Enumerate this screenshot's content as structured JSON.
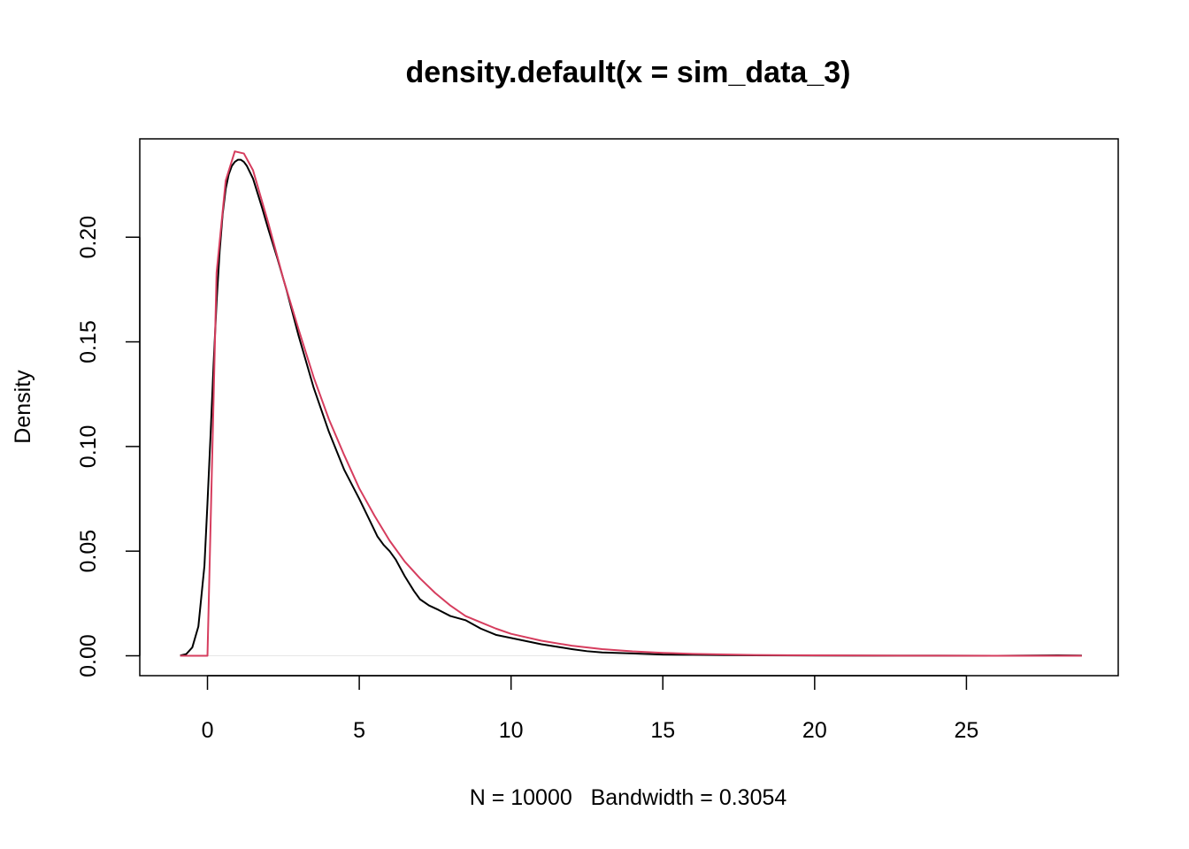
{
  "chart_data": {
    "type": "line",
    "title": "density.default(x = sim_data_3)",
    "xlabel": "N = 10000   Bandwidth = 0.3054",
    "ylabel": "Density",
    "xlim": [
      -2.23,
      30.0
    ],
    "ylim": [
      -0.0095,
      0.247
    ],
    "xticks": [
      0,
      5,
      10,
      15,
      20,
      25
    ],
    "xtick_labels": [
      "0",
      "5",
      "10",
      "15",
      "20",
      "25"
    ],
    "yticks": [
      0.0,
      0.05,
      0.1,
      0.15,
      0.2
    ],
    "ytick_labels": [
      "0.00",
      "0.05",
      "0.10",
      "0.15",
      "0.20"
    ],
    "grid": false,
    "baseline_y": 0,
    "series": [
      {
        "color": "#000000",
        "x": [
          -0.9,
          -0.7,
          -0.5,
          -0.3,
          -0.1,
          0.0,
          0.1,
          0.2,
          0.3,
          0.4,
          0.5,
          0.6,
          0.7,
          0.8,
          0.9,
          1.0,
          1.1,
          1.2,
          1.3,
          1.5,
          1.8,
          2.0,
          2.3,
          2.6,
          3.0,
          3.5,
          4.0,
          4.5,
          5.0,
          5.3,
          5.6,
          5.8,
          6.0,
          6.2,
          6.5,
          6.8,
          7.0,
          7.3,
          7.6,
          8.0,
          8.5,
          9.0,
          9.5,
          10.0,
          11.0,
          12.0,
          12.5,
          13.0,
          14.0,
          15.0,
          16.0,
          17.0,
          18.0,
          20.0,
          22.0,
          24.0,
          26.0,
          28.0,
          28.8
        ],
        "y": [
          0.0001,
          0.0008,
          0.004,
          0.014,
          0.043,
          0.073,
          0.105,
          0.139,
          0.169,
          0.193,
          0.211,
          0.223,
          0.23,
          0.234,
          0.236,
          0.237,
          0.237,
          0.236,
          0.234,
          0.228,
          0.214,
          0.204,
          0.19,
          0.175,
          0.153,
          0.128,
          0.107,
          0.089,
          0.075,
          0.066,
          0.057,
          0.053,
          0.05,
          0.046,
          0.038,
          0.031,
          0.027,
          0.024,
          0.022,
          0.019,
          0.017,
          0.013,
          0.01,
          0.0085,
          0.0055,
          0.0032,
          0.0022,
          0.0016,
          0.0011,
          0.0006,
          0.0005,
          0.0003,
          0.0002,
          0.0001,
          8e-05,
          5e-05,
          3e-05,
          0.0002,
          0.0001
        ]
      },
      {
        "color": "#d63d5e",
        "x": [
          -0.9,
          -0.5,
          0.0,
          0.3,
          0.6,
          0.9,
          1.2,
          1.5,
          2.0,
          2.5,
          3.0,
          3.5,
          4.0,
          4.5,
          5.0,
          5.5,
          6.0,
          6.5,
          7.0,
          7.5,
          8.0,
          8.5,
          9.0,
          9.5,
          10.0,
          11.0,
          12.0,
          13.0,
          14.0,
          15.0,
          16.0,
          18.0,
          20.0,
          22.0,
          24.0,
          26.0,
          28.0,
          28.8
        ],
        "y": [
          0.0,
          0.0,
          0.0,
          0.183,
          0.227,
          0.241,
          0.24,
          0.232,
          0.207,
          0.18,
          0.156,
          0.133,
          0.113,
          0.096,
          0.08,
          0.067,
          0.055,
          0.045,
          0.037,
          0.03,
          0.024,
          0.019,
          0.016,
          0.013,
          0.0105,
          0.0072,
          0.0048,
          0.0032,
          0.0021,
          0.0014,
          0.0009,
          0.0004,
          0.0002,
          0.0001,
          5e-05,
          3e-05,
          2e-05,
          1e-05
        ]
      }
    ]
  }
}
